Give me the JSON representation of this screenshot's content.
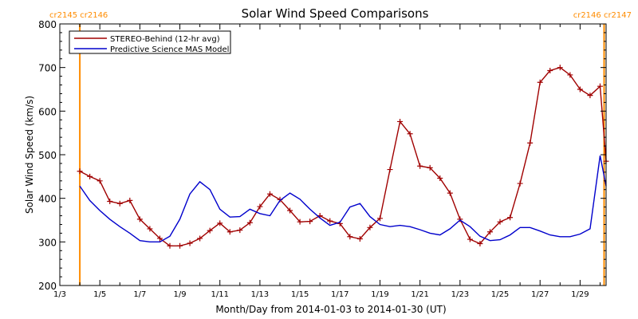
{
  "chart_data": {
    "type": "line",
    "title": "Solar Wind Speed Comparisons",
    "xlabel": "Month/Day from 2014-01-03 to 2014-01-30 (UT)",
    "ylabel": "Solar Wind Speed (km/s)",
    "ylim": [
      200,
      800
    ],
    "xlim_days_from_jan3": [
      0,
      27.3
    ],
    "x_unit_note": "x values are days after 2014-01-03 00:00 UT",
    "xticks": [
      {
        "x": 0,
        "label": "1/3"
      },
      {
        "x": 2,
        "label": "1/5"
      },
      {
        "x": 4,
        "label": "1/7"
      },
      {
        "x": 6,
        "label": "1/9"
      },
      {
        "x": 8,
        "label": "1/11"
      },
      {
        "x": 10,
        "label": "1/13"
      },
      {
        "x": 12,
        "label": "1/15"
      },
      {
        "x": 14,
        "label": "1/17"
      },
      {
        "x": 16,
        "label": "1/19"
      },
      {
        "x": 18,
        "label": "1/21"
      },
      {
        "x": 20,
        "label": "1/23"
      },
      {
        "x": 22,
        "label": "1/25"
      },
      {
        "x": 24,
        "label": "1/27"
      },
      {
        "x": 26,
        "label": "1/29"
      }
    ],
    "yticks": [
      200,
      300,
      400,
      500,
      600,
      700,
      800
    ],
    "carrington_markers": [
      {
        "x": 1.0,
        "label": "cr2145 cr2146",
        "side": "left"
      },
      {
        "x": 27.2,
        "label": "cr2146 cr2147",
        "side": "right"
      }
    ],
    "legend_position": "top-left",
    "series": [
      {
        "name": "STEREO-Behind (12-hr avg)",
        "color": "#a00000",
        "marker": "plus",
        "x": [
          1.0,
          1.5,
          2.0,
          2.5,
          3.0,
          3.5,
          4.0,
          4.5,
          5.0,
          5.5,
          6.0,
          6.5,
          7.0,
          7.5,
          8.0,
          8.5,
          9.0,
          9.5,
          10.0,
          10.5,
          11.0,
          11.5,
          12.0,
          12.5,
          13.0,
          13.5,
          14.0,
          14.5,
          15.0,
          15.5,
          16.0,
          16.5,
          17.0,
          17.5,
          18.0,
          18.5,
          19.0,
          19.5,
          20.0,
          20.5,
          21.0,
          21.5,
          22.0,
          22.5,
          23.0,
          23.5,
          24.0,
          24.5,
          25.0,
          25.5,
          26.0,
          26.5,
          27.0,
          27.3
        ],
        "y": [
          462,
          450,
          440,
          393,
          388,
          395,
          352,
          330,
          308,
          291,
          291,
          297,
          308,
          326,
          343,
          323,
          327,
          344,
          381,
          410,
          397,
          372,
          346,
          347,
          360,
          348,
          342,
          312,
          307,
          333,
          354,
          466,
          576,
          548,
          474,
          470,
          446,
          412,
          352,
          306,
          296,
          323,
          346,
          356,
          434,
          527,
          666,
          693,
          700,
          683,
          650,
          636,
          657,
          485
        ]
      },
      {
        "name": "Predictive Science MAS Model",
        "color": "#0000cc",
        "x": [
          1.0,
          1.5,
          2.0,
          2.5,
          3.0,
          3.5,
          4.0,
          4.5,
          5.0,
          5.5,
          6.0,
          6.5,
          7.0,
          7.5,
          8.0,
          8.5,
          9.0,
          9.5,
          10.0,
          10.5,
          11.0,
          11.5,
          12.0,
          12.5,
          13.0,
          13.5,
          14.0,
          14.5,
          15.0,
          15.5,
          16.0,
          16.5,
          17.0,
          17.5,
          18.0,
          18.5,
          19.0,
          19.5,
          20.0,
          20.5,
          21.0,
          21.5,
          22.0,
          22.5,
          23.0,
          23.5,
          24.0,
          24.5,
          25.0,
          25.5,
          26.0,
          26.5,
          27.0,
          27.3
        ],
        "y": [
          428,
          395,
          372,
          352,
          335,
          320,
          303,
          300,
          300,
          313,
          352,
          410,
          438,
          420,
          375,
          357,
          358,
          375,
          365,
          360,
          395,
          412,
          398,
          375,
          355,
          338,
          345,
          380,
          388,
          358,
          340,
          335,
          338,
          335,
          328,
          320,
          316,
          330,
          350,
          335,
          313,
          303,
          305,
          316,
          333,
          333,
          325,
          316,
          312,
          312,
          318,
          330,
          498,
          428
        ]
      }
    ]
  }
}
